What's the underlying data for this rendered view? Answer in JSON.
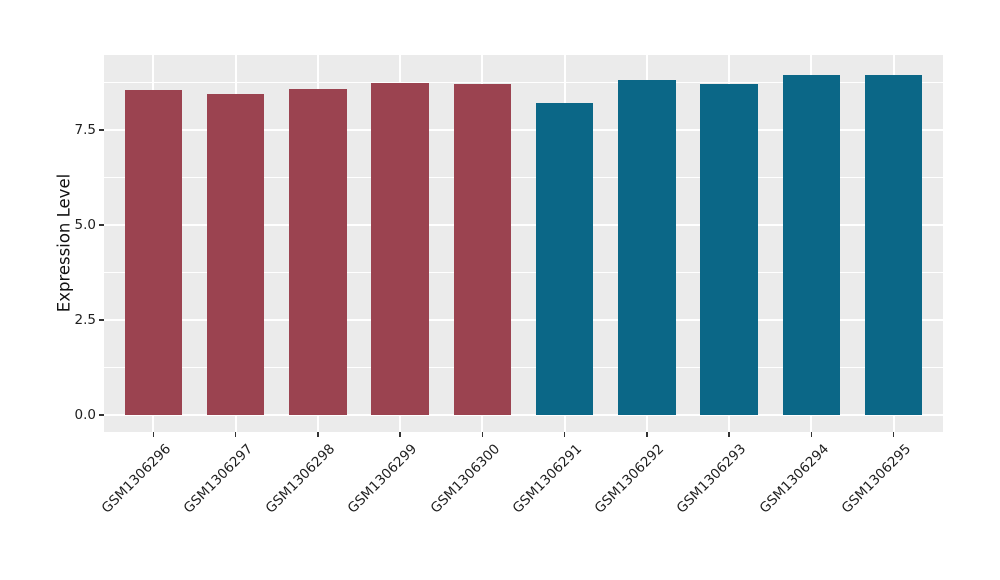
{
  "chart_data": {
    "type": "bar",
    "title": "",
    "ylabel": "Expression Level",
    "xlabel": "",
    "categories": [
      "GSM1306296",
      "GSM1306297",
      "GSM1306298",
      "GSM1306299",
      "GSM1306300",
      "GSM1306291",
      "GSM1306292",
      "GSM1306293",
      "GSM1306294",
      "GSM1306295"
    ],
    "values": [
      8.55,
      8.45,
      8.58,
      8.74,
      8.71,
      8.2,
      8.82,
      8.72,
      8.94,
      8.95
    ],
    "bar_colors": [
      "#9B4350",
      "#9B4350",
      "#9B4350",
      "#9B4350",
      "#9B4350",
      "#0B6787",
      "#0B6787",
      "#0B6787",
      "#0B6787",
      "#0B6787"
    ],
    "groups": [
      {
        "name": "group-red",
        "color": "#9B4350",
        "members": [
          "GSM1306296",
          "GSM1306297",
          "GSM1306298",
          "GSM1306299",
          "GSM1306300"
        ]
      },
      {
        "name": "group-teal",
        "color": "#0B6787",
        "members": [
          "GSM1306291",
          "GSM1306292",
          "GSM1306293",
          "GSM1306294",
          "GSM1306295"
        ]
      }
    ],
    "ytick_labels": [
      "0.0",
      "2.5",
      "5.0",
      "7.5"
    ],
    "ytick_values": [
      0,
      2.5,
      5,
      7.5
    ],
    "yminor_values": [
      1.25,
      3.75,
      6.25,
      8.75
    ],
    "ylim": [
      -0.45,
      9.47
    ],
    "grid": true,
    "legend_position": "none",
    "bar_width_frac": 0.7,
    "panel_bg": "#EBEBEB",
    "grid_color": "#FFFFFF",
    "figure_bg": "#FFFFFF"
  }
}
